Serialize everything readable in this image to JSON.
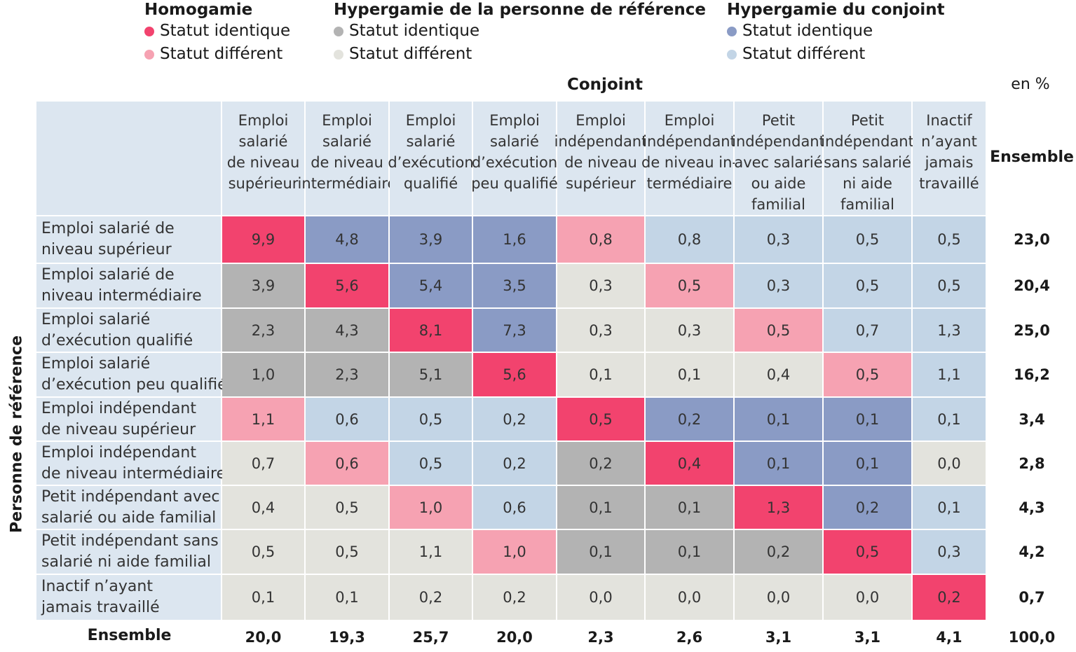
{
  "legend": [
    {
      "title": "Homogamie",
      "items": [
        {
          "label": "Statut identique",
          "color": "#f2436e"
        },
        {
          "label": "Statut différent",
          "color": "#f6a2b2"
        }
      ]
    },
    {
      "title": "Hypergamie de la personne de référence",
      "items": [
        {
          "label": "Statut identique",
          "color": "#b3b3b3"
        },
        {
          "label": "Statut différent",
          "color": "#e3e3dd"
        }
      ]
    },
    {
      "title": "Hypergamie du conjoint",
      "items": [
        {
          "label": "Statut identique",
          "color": "#8a9bc5"
        },
        {
          "label": "Statut différent",
          "color": "#c3d5e6"
        }
      ]
    }
  ],
  "chart_data": {
    "type": "table",
    "column_axis_label": "Conjoint",
    "row_axis_label": "Personne de référence",
    "unit": "en %",
    "total_label": "Ensemble",
    "columns": [
      [
        "Emploi",
        "salarié",
        "de niveau",
        "supérieur"
      ],
      [
        "Emploi",
        "salarié",
        "de niveau",
        "intermédiaire"
      ],
      [
        "Emploi",
        "salarié",
        "d’exécution",
        "qualifié"
      ],
      [
        "Emploi",
        "salarié",
        "d’exécution",
        "peu qualifié"
      ],
      [
        "Emploi",
        "indépendant",
        "de niveau",
        "supérieur"
      ],
      [
        "Emploi",
        "indépendant",
        "de niveau in-",
        "termédiaire"
      ],
      [
        "Petit",
        "indépendant",
        "avec salarié",
        "ou aide",
        "familial"
      ],
      [
        "Petit",
        "indépendant",
        "sans salarié",
        "ni aide",
        "familial"
      ],
      [
        "Inactif",
        "n’ayant",
        "jamais",
        "travaillé"
      ]
    ],
    "rows": [
      [
        "Emploi salarié de",
        "niveau supérieur"
      ],
      [
        "Emploi salarié de",
        "niveau intermédiaire"
      ],
      [
        "Emploi salarié",
        "d’exécution qualifié"
      ],
      [
        "Emploi salarié",
        "d’exécution peu qualifié"
      ],
      [
        "Emploi indépendant",
        "de niveau supérieur"
      ],
      [
        "Emploi indépendant",
        "de niveau intermédiaire"
      ],
      [
        "Petit indépendant avec",
        "salarié ou aide familial"
      ],
      [
        "Petit indépendant sans",
        "salarié ni aide familial"
      ],
      [
        "Inactif n’ayant",
        "jamais travaillé"
      ]
    ],
    "values": [
      [
        "9,9",
        "4,8",
        "3,9",
        "1,6",
        "0,8",
        "0,8",
        "0,3",
        "0,5",
        "0,5"
      ],
      [
        "3,9",
        "5,6",
        "5,4",
        "3,5",
        "0,3",
        "0,5",
        "0,3",
        "0,5",
        "0,5"
      ],
      [
        "2,3",
        "4,3",
        "8,1",
        "7,3",
        "0,3",
        "0,3",
        "0,5",
        "0,7",
        "1,3"
      ],
      [
        "1,0",
        "2,3",
        "5,1",
        "5,6",
        "0,1",
        "0,1",
        "0,4",
        "0,5",
        "1,1"
      ],
      [
        "1,1",
        "0,6",
        "0,5",
        "0,2",
        "0,5",
        "0,2",
        "0,1",
        "0,1",
        "0,1"
      ],
      [
        "0,7",
        "0,6",
        "0,5",
        "0,2",
        "0,2",
        "0,4",
        "0,1",
        "0,1",
        "0,0"
      ],
      [
        "0,4",
        "0,5",
        "1,0",
        "0,6",
        "0,1",
        "0,1",
        "1,3",
        "0,2",
        "0,1"
      ],
      [
        "0,5",
        "0,5",
        "1,1",
        "1,0",
        "0,1",
        "0,1",
        "0,2",
        "0,5",
        "0,3"
      ],
      [
        "0,1",
        "0,1",
        "0,2",
        "0,2",
        "0,0",
        "0,0",
        "0,0",
        "0,0",
        "0,2"
      ]
    ],
    "categories_grid": [
      [
        "HI",
        "CI",
        "CI",
        "CI",
        "HD",
        "CD",
        "CD",
        "CD",
        "CD"
      ],
      [
        "PI",
        "HI",
        "CI",
        "CI",
        "PD",
        "HD",
        "CD",
        "CD",
        "CD"
      ],
      [
        "PI",
        "PI",
        "HI",
        "CI",
        "PD",
        "PD",
        "HD",
        "CD",
        "CD"
      ],
      [
        "PI",
        "PI",
        "PI",
        "HI",
        "PD",
        "PD",
        "PD",
        "HD",
        "CD"
      ],
      [
        "HD",
        "CD",
        "CD",
        "CD",
        "HI",
        "CI",
        "CI",
        "CI",
        "CD"
      ],
      [
        "PD",
        "HD",
        "CD",
        "CD",
        "PI",
        "HI",
        "CI",
        "CI",
        "PD"
      ],
      [
        "PD",
        "PD",
        "HD",
        "CD",
        "PI",
        "PI",
        "HI",
        "CI",
        "CD"
      ],
      [
        "PD",
        "PD",
        "PD",
        "HD",
        "PI",
        "PI",
        "PI",
        "HI",
        "CD"
      ],
      [
        "PD",
        "PD",
        "PD",
        "PD",
        "PD",
        "PD",
        "PD",
        "PD",
        "HI"
      ]
    ],
    "category_colors": {
      "HI": "#f2436e",
      "HD": "#f6a2b2",
      "PI": "#b3b3b3",
      "PD": "#e3e3dd",
      "CI": "#8a9bc5",
      "CD": "#c3d5e6"
    },
    "row_totals": [
      "23,0",
      "20,4",
      "25,0",
      "16,2",
      "3,4",
      "2,8",
      "4,3",
      "4,2",
      "0,7"
    ],
    "col_totals": [
      "20,0",
      "19,3",
      "25,7",
      "20,0",
      "2,3",
      "2,6",
      "3,1",
      "3,1",
      "4,1"
    ],
    "grand_total": "100,0"
  }
}
